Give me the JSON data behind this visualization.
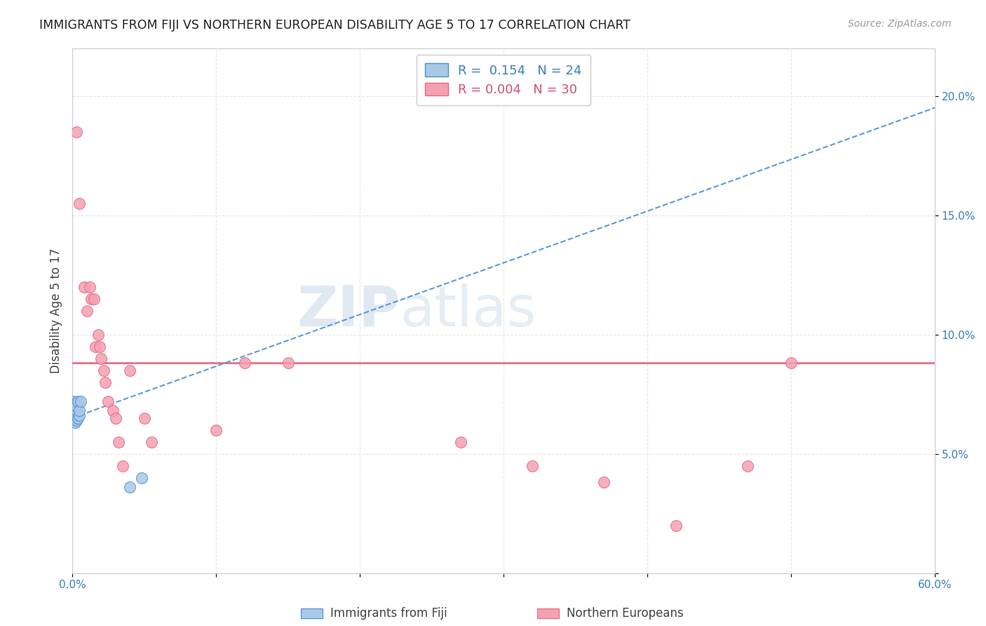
{
  "title": "IMMIGRANTS FROM FIJI VS NORTHERN EUROPEAN DISABILITY AGE 5 TO 17 CORRELATION CHART",
  "source": "Source: ZipAtlas.com",
  "ylabel": "Disability Age 5 to 17",
  "xlim": [
    0.0,
    0.6
  ],
  "ylim": [
    0.0,
    0.22
  ],
  "fiji_x": [
    0.0,
    0.0,
    0.0,
    0.001,
    0.001,
    0.001,
    0.001,
    0.001,
    0.002,
    0.002,
    0.002,
    0.002,
    0.002,
    0.003,
    0.003,
    0.003,
    0.003,
    0.004,
    0.004,
    0.005,
    0.005,
    0.006,
    0.04,
    0.048
  ],
  "fiji_y": [
    0.065,
    0.067,
    0.069,
    0.064,
    0.066,
    0.068,
    0.07,
    0.072,
    0.063,
    0.065,
    0.067,
    0.069,
    0.071,
    0.064,
    0.066,
    0.068,
    0.07,
    0.065,
    0.072,
    0.066,
    0.068,
    0.072,
    0.036,
    0.04
  ],
  "ne_x": [
    0.003,
    0.005,
    0.008,
    0.01,
    0.012,
    0.013,
    0.015,
    0.016,
    0.018,
    0.019,
    0.02,
    0.022,
    0.023,
    0.025,
    0.028,
    0.03,
    0.032,
    0.035,
    0.04,
    0.05,
    0.055,
    0.1,
    0.12,
    0.15,
    0.27,
    0.32,
    0.37,
    0.42,
    0.47,
    0.5
  ],
  "ne_y": [
    0.185,
    0.155,
    0.12,
    0.11,
    0.12,
    0.115,
    0.115,
    0.095,
    0.1,
    0.095,
    0.09,
    0.085,
    0.08,
    0.072,
    0.068,
    0.065,
    0.055,
    0.045,
    0.085,
    0.065,
    0.055,
    0.06,
    0.088,
    0.088,
    0.055,
    0.045,
    0.038,
    0.02,
    0.045,
    0.088
  ],
  "fiji_color": "#a8c8e8",
  "ne_color": "#f4a0b0",
  "fiji_trend_color": "#4a90d4",
  "ne_trend_color": "#e86880",
  "fiji_R": 0.154,
  "fiji_N": 24,
  "ne_R": 0.004,
  "ne_N": 30,
  "ne_trend_y": 0.088,
  "fiji_trend_x0": 0.0,
  "fiji_trend_y0": 0.065,
  "fiji_trend_x1": 0.6,
  "fiji_trend_y1": 0.195,
  "watermark_zip": "ZIP",
  "watermark_atlas": "atlas",
  "background_color": "#ffffff",
  "grid_color": "#e0e0e0"
}
